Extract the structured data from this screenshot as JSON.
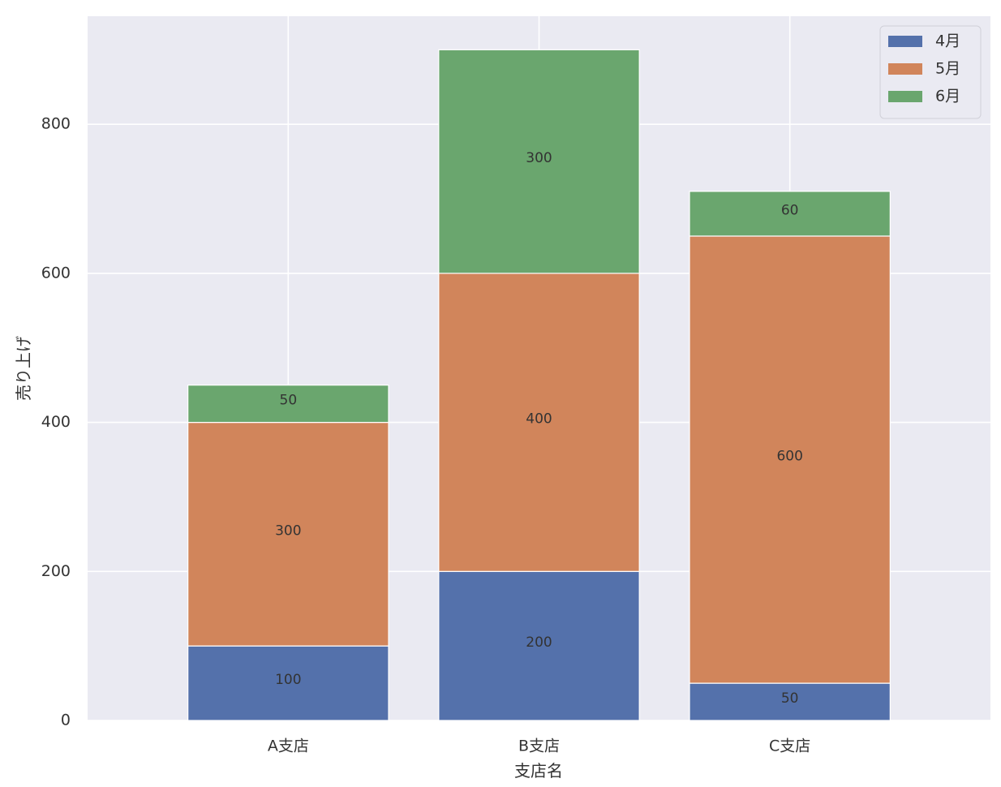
{
  "chart_data": {
    "type": "bar",
    "stacked": true,
    "categories": [
      "A支店",
      "B支店",
      "C支店"
    ],
    "series": [
      {
        "name": "4月",
        "values": [
          100,
          200,
          50
        ],
        "color": "#5471ab"
      },
      {
        "name": "5月",
        "values": [
          300,
          400,
          600
        ],
        "color": "#d1855b"
      },
      {
        "name": "6月",
        "values": [
          50,
          300,
          60
        ],
        "color": "#6aa66e"
      }
    ],
    "xlabel": "支店名",
    "ylabel": "売り上げ",
    "ylim": [
      0,
      945
    ],
    "yticks": [
      0,
      200,
      400,
      600,
      800
    ],
    "grid": true,
    "legend": "top-right",
    "background": "#eaeaf2"
  }
}
